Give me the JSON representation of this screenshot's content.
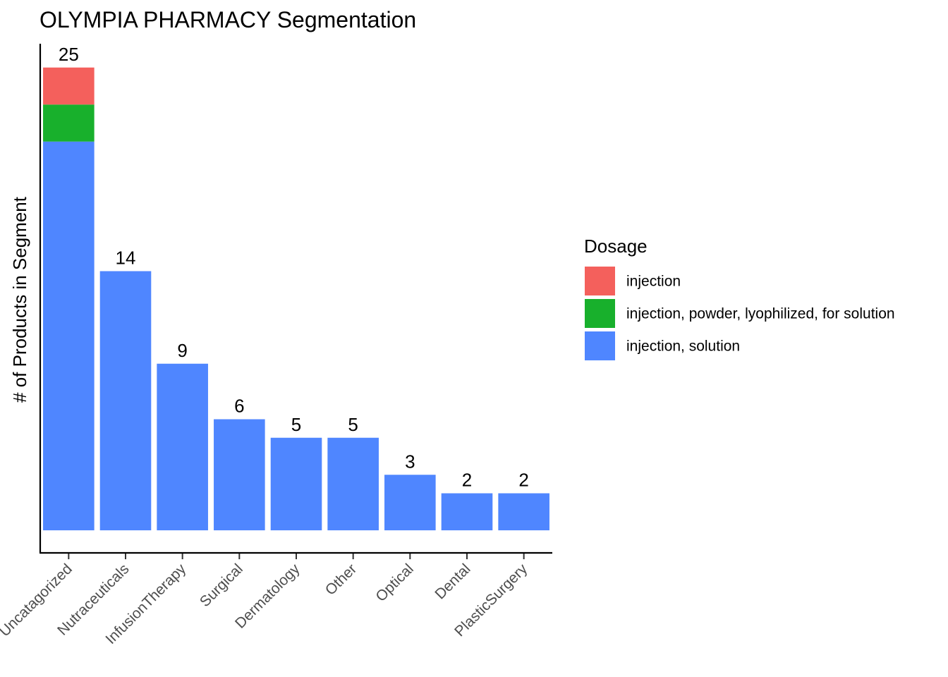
{
  "chart_data": {
    "type": "bar",
    "stacked": true,
    "title": "OLYMPIA PHARMACY Segmentation",
    "xlabel": "",
    "ylabel": "# of Products in Segment",
    "categories": [
      "Uncatagorized",
      "Nutraceuticals",
      "InfusionTherapy",
      "Surgical",
      "Dermatology",
      "Other",
      "Optical",
      "Dental",
      "PlasticSurgery"
    ],
    "series": [
      {
        "name": "injection, solution",
        "color": "#4F86FF",
        "values": [
          21,
          14,
          9,
          6,
          5,
          5,
          3,
          2,
          2
        ]
      },
      {
        "name": "injection, powder, lyophilized, for solution",
        "color": "#18B02C",
        "values": [
          2,
          0,
          0,
          0,
          0,
          0,
          0,
          0,
          0
        ]
      },
      {
        "name": "injection",
        "color": "#F4605C",
        "values": [
          2,
          0,
          0,
          0,
          0,
          0,
          0,
          0,
          0
        ]
      }
    ],
    "totals": [
      25,
      14,
      9,
      6,
      5,
      5,
      3,
      2,
      2
    ],
    "ylim": [
      0,
      26.3
    ],
    "grid": false,
    "legend": {
      "title": "Dosage",
      "position": "right",
      "entries": [
        {
          "label": "injection",
          "color": "#F4605C"
        },
        {
          "label": "injection, powder, lyophilized, for solution",
          "color": "#18B02C"
        },
        {
          "label": "injection, solution",
          "color": "#4F86FF"
        }
      ]
    }
  }
}
